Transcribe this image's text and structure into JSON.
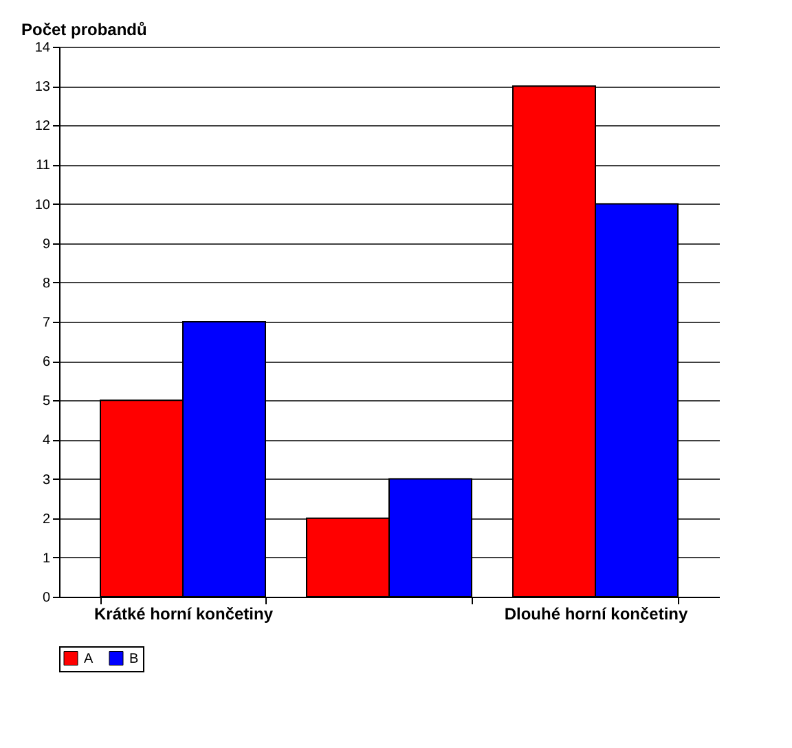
{
  "chart_data": {
    "type": "bar",
    "ylabel": "Počet probandů",
    "categories": [
      "Krátké horní končetiny",
      null,
      "Dlouhé horní končetiny"
    ],
    "series": [
      {
        "name": "A",
        "color": "#ff0000",
        "values": [
          5,
          2,
          13
        ]
      },
      {
        "name": "B",
        "color": "#0000ff",
        "values": [
          7,
          3,
          10
        ]
      }
    ],
    "ylim": [
      0,
      14
    ],
    "yticks": [
      0,
      1,
      2,
      3,
      4,
      5,
      6,
      7,
      8,
      9,
      10,
      11,
      12,
      13,
      14
    ],
    "grid": "y",
    "legend": "bottom"
  }
}
